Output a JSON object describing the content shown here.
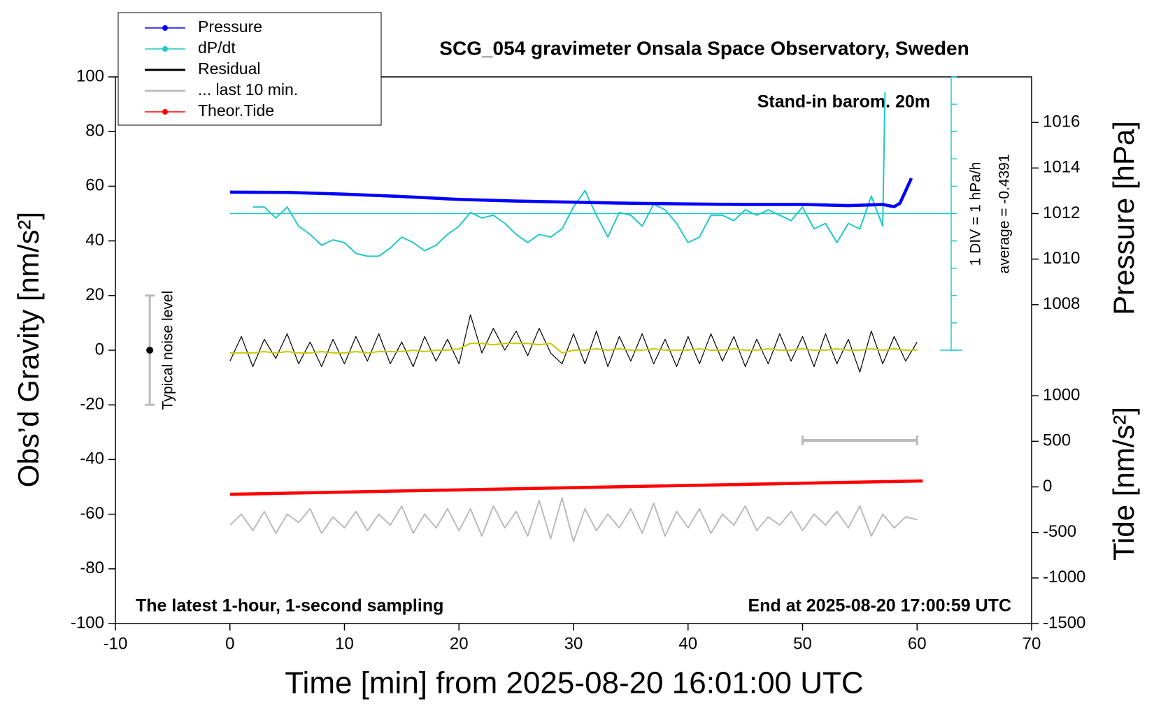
{
  "chart_data": {
    "type": "line",
    "title": "SCG_054 gravimeter Onsala Space Observatory, Sweden",
    "x_label": "Time [min] from 2025-08-20 16:01:00 UTC",
    "y_label": "Obs’d Gravity [nm/s²]",
    "y2_label": "Pressure [hPa]",
    "y3_label": "Tide [nm/s²]",
    "annotations": {
      "barometer": "Stand-in barom. 20m",
      "division": "1 DIV = 1 hPa/h",
      "average_label": "average = -0.4391",
      "sampling": "The latest 1-hour, 1-second sampling",
      "end": "End at 2025-08-20 17:00:59 UTC",
      "noise": "Typical noise level"
    },
    "dpdt_average": -0.4391,
    "noise_bar": {
      "x": -7,
      "low": -20,
      "center": 0,
      "high": 20
    },
    "scale_bar": {
      "x": [
        50,
        60
      ],
      "y": -33
    },
    "xlim": [
      -10,
      70
    ],
    "xticks": [
      -10,
      0,
      10,
      20,
      30,
      40,
      50,
      60,
      70
    ],
    "ylim": [
      -100,
      100
    ],
    "yticks": [
      -100,
      -80,
      -60,
      -40,
      -20,
      0,
      20,
      40,
      60,
      80,
      100
    ],
    "y2lim": [
      1006,
      1018
    ],
    "y2ticks": [
      1008,
      1010,
      1012,
      1014,
      1016
    ],
    "y3lim": [
      -1500,
      1500
    ],
    "y3ticks": [
      -1500,
      -1000,
      -500,
      0,
      500,
      1000
    ],
    "y4lim": [
      -5.4391,
      4.5609
    ],
    "y4ticks": [
      -5.4391,
      -4.4391,
      -3.4391,
      -2.4391,
      -1.4391,
      -0.4391,
      0.5609,
      1.5609,
      2.5609,
      3.5609,
      4.5609
    ],
    "legend": "upper left",
    "x": [
      0,
      1,
      2,
      3,
      4,
      5,
      6,
      7,
      8,
      9,
      10,
      11,
      12,
      13,
      14,
      15,
      16,
      17,
      18,
      19,
      20,
      21,
      22,
      23,
      24,
      25,
      26,
      27,
      28,
      29,
      30,
      31,
      32,
      33,
      34,
      35,
      36,
      37,
      38,
      39,
      40,
      41,
      42,
      43,
      44,
      45,
      46,
      47,
      48,
      49,
      50,
      51,
      52,
      53,
      54,
      55,
      56,
      57,
      58,
      59,
      60
    ],
    "series": [
      {
        "name": "Pressure",
        "color": "#0000ff",
        "axis": "y2",
        "marker": true,
        "x": [
          0,
          5,
          10,
          15,
          20,
          25,
          30,
          35,
          40,
          45,
          50,
          54,
          56,
          57,
          58,
          58.5,
          59,
          59.5
        ],
        "values": [
          1012.94,
          1012.93,
          1012.85,
          1012.75,
          1012.62,
          1012.55,
          1012.5,
          1012.45,
          1012.42,
          1012.4,
          1012.4,
          1012.35,
          1012.38,
          1012.4,
          1012.3,
          1012.45,
          1013.0,
          1013.55
        ]
      },
      {
        "name": "dP/dt",
        "color": "#20c8c8",
        "axis": "y4",
        "marker": true,
        "x": [
          2,
          3,
          4,
          5,
          6,
          7,
          8,
          9,
          10,
          11,
          12,
          13,
          14,
          15,
          16,
          17,
          18,
          19,
          20,
          21,
          22,
          23,
          24,
          25,
          26,
          27,
          28,
          29,
          30,
          31,
          32,
          33,
          34,
          35,
          36,
          37,
          38,
          39,
          40,
          41,
          42,
          43,
          44,
          45,
          46,
          47,
          48,
          49,
          50,
          51,
          52,
          53,
          54,
          55,
          56,
          57,
          57.2
        ],
        "values": [
          -0.2,
          -0.2,
          -0.6,
          -0.2,
          -0.9,
          -1.2,
          -1.6,
          -1.4,
          -1.5,
          -1.9,
          -2.0,
          -2.0,
          -1.7,
          -1.3,
          -1.5,
          -1.8,
          -1.6,
          -1.2,
          -0.9,
          -0.4,
          -0.6,
          -0.5,
          -0.8,
          -1.2,
          -1.5,
          -1.2,
          -1.3,
          -1.0,
          -0.2,
          0.4,
          -0.5,
          -1.3,
          -0.4,
          -0.5,
          -0.9,
          -0.1,
          -0.3,
          -0.8,
          -1.5,
          -1.3,
          -0.5,
          -0.5,
          -0.7,
          -0.3,
          -0.5,
          -0.3,
          -0.5,
          -0.7,
          -0.2,
          -1.0,
          -0.8,
          -1.5,
          -0.8,
          -1.0,
          0.2,
          -0.9,
          4.0
        ]
      },
      {
        "name": "Residual",
        "color": "#000000",
        "axis": "y",
        "values": [
          -4,
          5,
          -6,
          4,
          -3,
          6,
          -5,
          3,
          -6,
          4,
          -5,
          5,
          -4,
          6,
          -5,
          3,
          -6,
          5,
          -4,
          4,
          -5,
          13,
          -1,
          8,
          0,
          7,
          -2,
          8,
          -1,
          -5,
          6,
          -5,
          7,
          -6,
          5,
          -4,
          6,
          -5,
          4,
          -6,
          5,
          -5,
          6,
          -4,
          5,
          -6,
          4,
          -5,
          6,
          -4,
          5,
          -6,
          6,
          -5,
          4,
          -8,
          7,
          -5,
          5,
          -4,
          3
        ]
      },
      {
        "color": "#c8c800",
        "axis": "y",
        "values": [
          -1,
          -1,
          -1,
          -0.5,
          -1,
          -0.5,
          -1,
          -1,
          -0.5,
          -1,
          -1,
          -0.5,
          -1,
          -0.5,
          -0.5,
          -0.5,
          0,
          -0.5,
          0,
          0,
          0.5,
          2.5,
          2.5,
          2,
          2.5,
          2.5,
          2.5,
          2,
          2.5,
          -1,
          0,
          0,
          0.5,
          0,
          0.5,
          0,
          0,
          0.5,
          0,
          0,
          0,
          0.5,
          0,
          0,
          0.5,
          0,
          0,
          0.5,
          0,
          0,
          0.5,
          0,
          0,
          0.5,
          0,
          0,
          0.5,
          0,
          0.5,
          0,
          0
        ]
      },
      {
        "name": "... last 10 min.",
        "color": "#bbbbbb",
        "axis": "y",
        "values": [
          -64,
          -60,
          -66,
          -59,
          -67,
          -60,
          -63,
          -58,
          -67,
          -61,
          -65,
          -59,
          -66,
          -60,
          -64,
          -57,
          -67,
          -60,
          -65,
          -58,
          -66,
          -58,
          -68,
          -57,
          -65,
          -59,
          -68,
          -55,
          -69,
          -54,
          -70,
          -58,
          -66,
          -60,
          -65,
          -58,
          -67,
          -56,
          -68,
          -59,
          -65,
          -58,
          -67,
          -60,
          -64,
          -57,
          -66,
          -61,
          -64,
          -59,
          -66,
          -60,
          -64,
          -59,
          -65,
          -57,
          -68,
          -60,
          -65,
          -61,
          -62
        ]
      },
      {
        "name": "Theor.Tide",
        "color": "#ff0000",
        "axis": "y3",
        "marker": true,
        "x": [
          0,
          60.5
        ],
        "values": [
          -81,
          65
        ]
      }
    ]
  }
}
